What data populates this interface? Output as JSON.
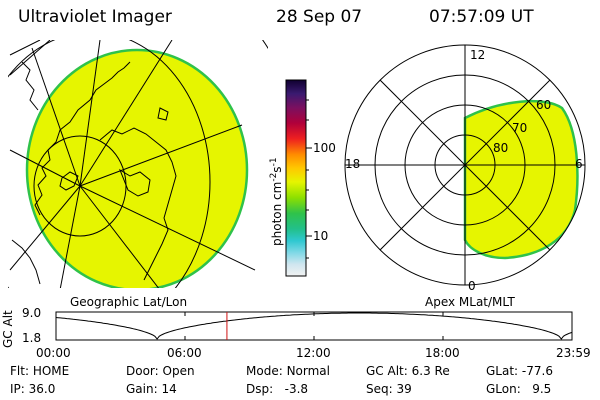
{
  "header": {
    "instrument": "Ultraviolet Imager",
    "date": "28 Sep 07",
    "time": "07:57:09 UT"
  },
  "left_map": {
    "label": "Geographic Lat/Lon"
  },
  "right_map": {
    "label": "Apex MLat/MLT",
    "mlt_labels": {
      "top": "12",
      "left": "18",
      "right": "6",
      "bottom": "0"
    },
    "lat_labels": [
      "80",
      "70",
      "60"
    ]
  },
  "colorbar": {
    "unit_label": "photon cm-2s-1",
    "ticks": [
      "100",
      "10"
    ]
  },
  "orbit_panel": {
    "y_axis_label": "GC Alt",
    "y_ticks": [
      "9.0",
      "1.8"
    ],
    "x_ticks": [
      "00:00",
      "06:00",
      "12:00",
      "18:00",
      "23:59"
    ],
    "cursor_time_hours": 7.95
  },
  "info": {
    "row1": [
      {
        "label": "Flt:",
        "value": "HOME"
      },
      {
        "label": "Door:",
        "value": "Open"
      },
      {
        "label": "Mode:",
        "value": "Normal"
      },
      {
        "label": "GC Alt:",
        "value": "6.3 Re"
      },
      {
        "label": "GLat:",
        "value": "-77.6"
      }
    ],
    "row2": [
      {
        "label": "IP:",
        "value": "36.0"
      },
      {
        "label": "Gain:",
        "value": "14"
      },
      {
        "label": "Dsp:",
        "value": "-3.8"
      },
      {
        "label": "Seq:",
        "value": "39"
      },
      {
        "label": "GLon:",
        "value": "9.5"
      }
    ]
  },
  "colors": {
    "aurora_fill": "#e6f500",
    "aurora_edge": "#2fc24a",
    "cursor": "#d01010"
  }
}
